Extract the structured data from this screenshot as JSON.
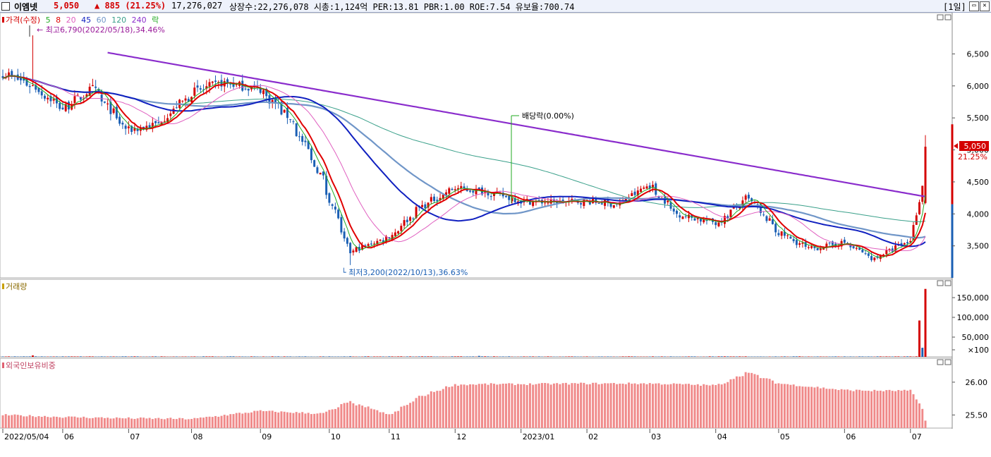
{
  "header": {
    "stock_name": "이엠넷",
    "price": "5,050",
    "change": "▲ 885 (21.25%)",
    "volume": "17,276,027",
    "info": "상장수:22,276,078 시총:1,124억 PER:13.81 PBR:1.00 ROE:7.54 유보율:700.74",
    "period_button": "[1일]"
  },
  "colors": {
    "up": "#d40000",
    "down": "#1a5fb4",
    "ma5": "#22aa22",
    "ma8": "#e00000",
    "ma20": "#e060c0",
    "ma45": "#1020c0",
    "ma60": "#7096c8",
    "ma120": "#3aa08a",
    "ma240": "#8a2ccc"
  },
  "price_panel": {
    "legend": {
      "prefix": "가격(수정)",
      "items": [
        "5",
        "8",
        "20",
        "45",
        "60",
        "120",
        "240"
      ],
      "suffix": "락"
    },
    "high_note": "최고6,790(2022/05/18),34.46%",
    "low_note": "최저3,200(2022/10/13),36.63%",
    "dividend_note": "배당락(0.00%)",
    "current_price_label": "5,050",
    "current_change_label": "21.25%"
  },
  "volume_panel": {
    "title": "거래량"
  },
  "foreign_panel": {
    "title": "외국인보유비중"
  },
  "x_axis": {
    "labels": [
      "2022/05/04",
      "06",
      "07",
      "08",
      "09",
      "10",
      "11",
      "12",
      "2023/01",
      "02",
      "03",
      "04",
      "05",
      "06",
      "07"
    ]
  },
  "chart_data": [
    {
      "type": "candlestick",
      "title": "가격(수정)",
      "y_ticks": [
        3500,
        4000,
        4500,
        5000,
        5500,
        6000,
        6500
      ],
      "y_tick_labels": [
        "3,500",
        "4,000",
        "4,500",
        "5,000",
        "5,500",
        "6,000",
        "6,500"
      ],
      "ylim": [
        3000,
        7100
      ],
      "anchors": {
        "dates": [
          "2022/05/04",
          "2022/05/18",
          "2022/06/01",
          "2022/06/15",
          "2022/07/01",
          "2022/07/15",
          "2022/08/01",
          "2022/08/15",
          "2022/09/01",
          "2022/09/15",
          "2022/10/01",
          "2022/10/13",
          "2022/11/01",
          "2022/11/15",
          "2022/12/01",
          "2022/12/15",
          "2023/01/02",
          "2023/01/16",
          "2023/02/01",
          "2023/02/15",
          "2023/03/02",
          "2023/03/15",
          "2023/04/03",
          "2023/04/17",
          "2023/05/02",
          "2023/05/16",
          "2023/06/01",
          "2023/06/15",
          "2023/07/03",
          "2023/07/10"
        ],
        "close": [
          6200,
          6000,
          5650,
          5950,
          5300,
          5400,
          5900,
          6050,
          5950,
          5500,
          4500,
          3400,
          3650,
          4100,
          4400,
          4350,
          4200,
          4180,
          4200,
          4150,
          4450,
          4000,
          3850,
          4250,
          3700,
          3450,
          3550,
          3300,
          3600,
          5050
        ]
      },
      "series": [
        {
          "name": "5",
          "values": []
        },
        {
          "name": "8",
          "values": []
        },
        {
          "name": "20",
          "values": []
        },
        {
          "name": "45",
          "values": []
        },
        {
          "name": "60",
          "values": []
        },
        {
          "name": "120",
          "values": []
        },
        {
          "name": "240",
          "values": []
        }
      ],
      "grid": false
    },
    {
      "type": "bar",
      "title": "거래량",
      "y_ticks": [
        100,
        50000,
        100000,
        150000
      ],
      "y_tick_labels": [
        "×100",
        "50,000",
        "100,000",
        "150,000"
      ],
      "ylim": [
        0,
        175000
      ],
      "spikes": [
        {
          "date": "2023/07/06",
          "value": 92000
        },
        {
          "date": "2023/07/07",
          "value": 23000
        },
        {
          "date": "2023/07/10",
          "value": 172000
        }
      ]
    },
    {
      "type": "bar",
      "title": "외국인보유비중",
      "y_ticks": [
        25.5,
        26.0
      ],
      "y_tick_labels": [
        "25.50",
        "26.00"
      ],
      "ylim": [
        25.3,
        26.3
      ],
      "anchors": {
        "dates": [
          "2022/05/04",
          "2022/06/01",
          "2022/07/01",
          "2022/08/01",
          "2022/09/01",
          "2022/10/01",
          "2022/10/13",
          "2022/11/01",
          "2022/11/15",
          "2022/12/01",
          "2022/12/15",
          "2023/01/02",
          "2023/02/01",
          "2023/03/02",
          "2023/03/15",
          "2023/04/03",
          "2023/04/17",
          "2023/05/02",
          "2023/06/01",
          "2023/06/15",
          "2023/07/03",
          "2023/07/10"
        ],
        "values": [
          25.5,
          25.47,
          25.45,
          25.44,
          25.56,
          25.52,
          25.7,
          25.5,
          25.78,
          25.96,
          25.97,
          25.97,
          25.98,
          25.98,
          25.97,
          25.95,
          26.15,
          25.98,
          25.88,
          25.87,
          25.87,
          25.41
        ]
      }
    }
  ]
}
